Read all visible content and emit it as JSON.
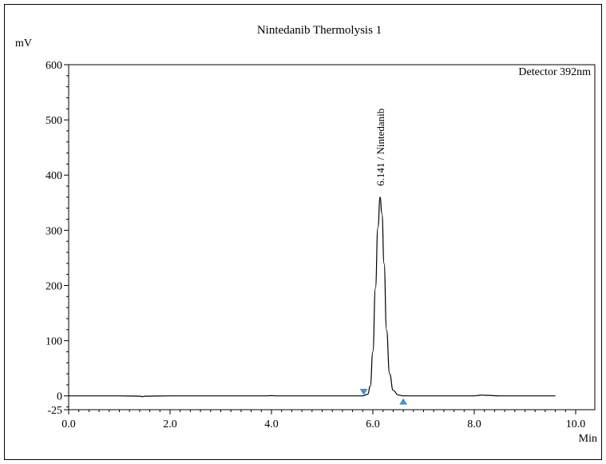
{
  "chart_data": {
    "type": "line",
    "title": "Nintedanib Thermolysis 1",
    "ylabel": "mV",
    "xlabel": "Min",
    "detector_label": "Detector 392nm",
    "xlim": [
      0.0,
      10.0
    ],
    "ylim": [
      -25,
      600
    ],
    "x_ticks": [
      0.0,
      2.0,
      4.0,
      6.0,
      8.0,
      10.0
    ],
    "x_tick_labels": [
      "0.0",
      "2.0",
      "4.0",
      "6.0",
      "8.0",
      "10.0"
    ],
    "y_ticks": [
      -25,
      0,
      100,
      200,
      300,
      400,
      500,
      600
    ],
    "y_tick_labels": [
      "-25",
      "0",
      "100",
      "200",
      "300",
      "400",
      "500",
      "600"
    ],
    "grid": false,
    "series": [
      {
        "peak": {
          "retention_time": 6.141,
          "height": 360,
          "label": "6.141 / Nintedanib",
          "start": 5.82,
          "end": 6.6
        },
        "x": [
          0.0,
          1.0,
          1.42,
          1.45,
          1.5,
          2.0,
          3.0,
          3.9,
          4.0,
          4.1,
          5.0,
          5.6,
          5.8,
          5.9,
          5.95,
          6.0,
          6.05,
          6.1,
          6.141,
          6.18,
          6.22,
          6.27,
          6.33,
          6.4,
          6.5,
          6.6,
          7.0,
          7.5,
          8.0,
          8.1,
          8.15,
          8.25,
          8.5,
          9.0,
          9.6
        ],
        "y": [
          0.0,
          0.0,
          -0.5,
          -1.5,
          -0.5,
          0.0,
          0.0,
          0.0,
          0.5,
          0.0,
          0.0,
          0.0,
          0.0,
          3,
          18,
          80,
          195,
          305,
          360,
          330,
          240,
          120,
          40,
          10,
          1.5,
          0.0,
          0.0,
          0.0,
          0.0,
          1.0,
          1.5,
          1.0,
          0.0,
          0.0,
          0.0
        ]
      }
    ],
    "markers": [
      {
        "type": "peak-start",
        "x": 5.82,
        "y": 7,
        "color": "#4a8fd4"
      },
      {
        "type": "peak-end",
        "x": 6.6,
        "y": -10,
        "color": "#4a8fd4"
      }
    ]
  }
}
